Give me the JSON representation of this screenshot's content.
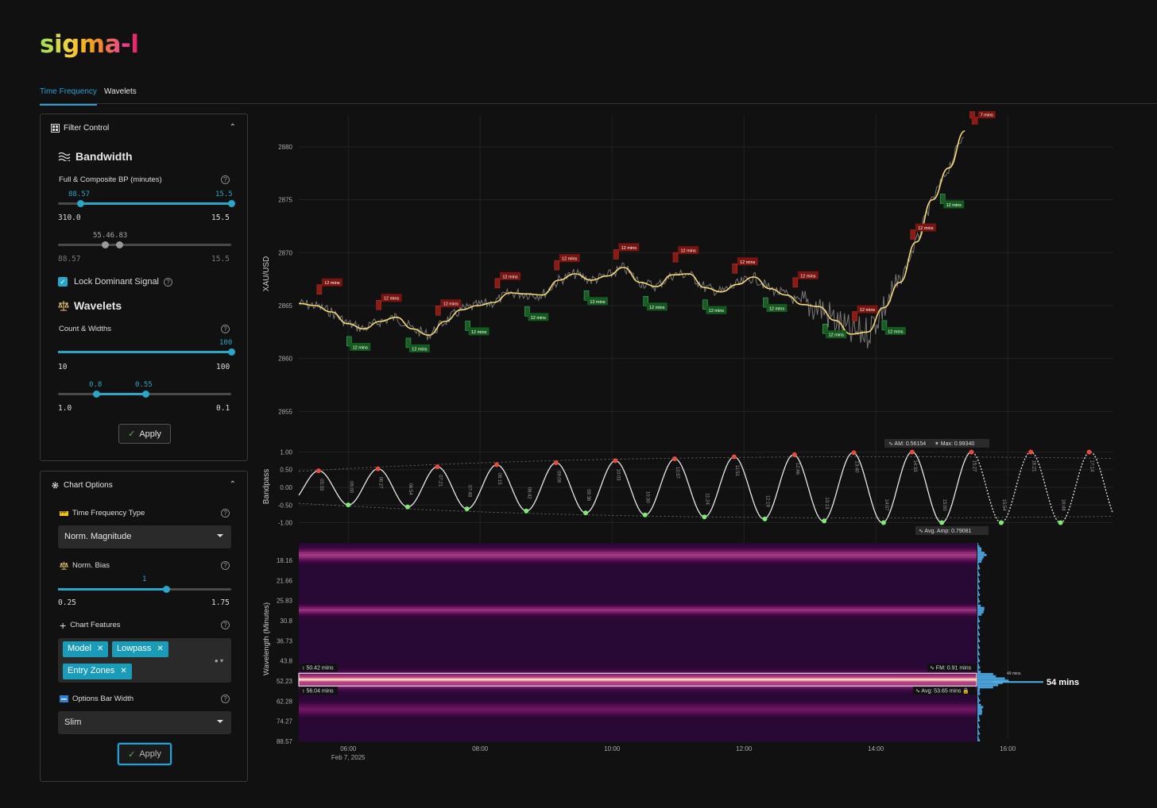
{
  "app": {
    "logo_text": "sigma-l"
  },
  "tabs": [
    {
      "label": "Time Frequency",
      "active": true
    },
    {
      "label": "Wavelets",
      "active": false
    }
  ],
  "filter_control": {
    "title": "Filter Control",
    "bandwidth": {
      "title": "Bandwidth",
      "label": "Full & Composite BP (minutes)",
      "slider1": {
        "low": "88.57",
        "high": "15.5",
        "min": "310.0",
        "max": "15.5"
      },
      "slider2": {
        "low": "55.46",
        "high": "46.83",
        "overlap_text": "55.46.83",
        "min": "88.57",
        "max": "15.5"
      }
    },
    "lock_label": "Lock Dominant Signal",
    "lock_checked": true,
    "wavelets": {
      "title": "Wavelets",
      "label": "Count & Widths",
      "slider1": {
        "value": "100",
        "min": "10",
        "max": "100"
      },
      "slider2": {
        "low": "0.8",
        "high": "0.55",
        "min": "1.0",
        "max": "0.1"
      }
    },
    "apply_label": "Apply"
  },
  "chart_options": {
    "title": "Chart Options",
    "tf_type_label": "Time Frequency Type",
    "tf_type_value": "Norm. Magnitude",
    "bias_label": "Norm. Bias",
    "bias": {
      "value": "1",
      "min": "0.25",
      "max": "1.75"
    },
    "features_label": "Chart Features",
    "features": [
      "Model",
      "Lowpass",
      "Entry Zones"
    ],
    "bar_width_label": "Options Bar Width",
    "bar_width_value": "Slim",
    "apply_label": "Apply"
  },
  "chart_data": [
    {
      "type": "line",
      "ylabel": "XAU/USD",
      "y_ticks": [
        "2880",
        "2875",
        "2870",
        "2865",
        "2860",
        "2855"
      ],
      "ylim": [
        2853,
        2883
      ],
      "x_ticks": [
        "06:00",
        "08:00",
        "10:00",
        "12:00",
        "14:00",
        "16:00"
      ],
      "x_sublabel": "Feb 7, 2025",
      "series": [
        {
          "values": [
            2865.2,
            2865.0,
            2864.4,
            2863.3,
            2862.8,
            2863.5,
            2863.9,
            2862.8,
            2862.2,
            2863.5,
            2864.6,
            2865.0,
            2865.3,
            2866.2,
            2866.1,
            2866.0,
            2867.4,
            2868.0,
            2867.4,
            2867.8,
            2868.6,
            2867.2,
            2866.8,
            2867.9,
            2868.0,
            2866.7,
            2866.3,
            2867.0,
            2867.7,
            2866.6,
            2866.0,
            2865.1,
            2864.9,
            2863.6,
            2862.3,
            2862.5,
            2864.8,
            2867.2,
            2871.0,
            2875.0,
            2878.0,
            2881.5
          ]
        }
      ],
      "annotations": {
        "peak_label": "12 mins",
        "peak_last_label": "7 mins",
        "trough_label": "12 mins"
      }
    },
    {
      "type": "line",
      "ylabel": "Bandpass",
      "y_ticks": [
        "1.00",
        "0.50",
        "0.00",
        "-0.50",
        "-1.00"
      ],
      "ylim": [
        -1.1,
        1.1
      ],
      "peak_times": [
        "05:33",
        "06:27",
        "07:21",
        "08:15",
        "09:09",
        "10:03",
        "10:57",
        "11:51",
        "12:46",
        "13:40",
        "14:33",
        "15:27",
        "16:21",
        "17:14"
      ],
      "trough_times": [
        "06:00",
        "06:54",
        "07:48",
        "08:42",
        "09:36",
        "10:30",
        "11:24",
        "12:19",
        "13:13",
        "14:07",
        "15:00",
        "15:54",
        "16:48"
      ],
      "am_label": "AM: 0.56154",
      "max_label": "Max: 0.99340",
      "avg_amp_label": "Avg. Amp: 0.79081"
    },
    {
      "type": "heatmap",
      "ylabel": "Wavelength (Minutes)",
      "y_ticks": [
        "18.16",
        "21.66",
        "25.83",
        "30.8",
        "36.73",
        "43.8",
        "52.23",
        "62.28",
        "74.27",
        "88.57"
      ],
      "band_low_label": "50.42 mins",
      "band_high_label": "56.04 mins",
      "fm_label": "FM: 0.91 mins",
      "avg_label": "Avg: 53.65 mins",
      "histogram_peak_label": "49 mins",
      "dominant_label": "54 mins"
    }
  ],
  "colors": {
    "accent": "#2a9fd6",
    "slider": "#2aa7c8",
    "price": "#8a8a8a",
    "composite": "#f7d774",
    "peak_marker": "#8b1a14",
    "trough_marker": "#1d5b22"
  }
}
